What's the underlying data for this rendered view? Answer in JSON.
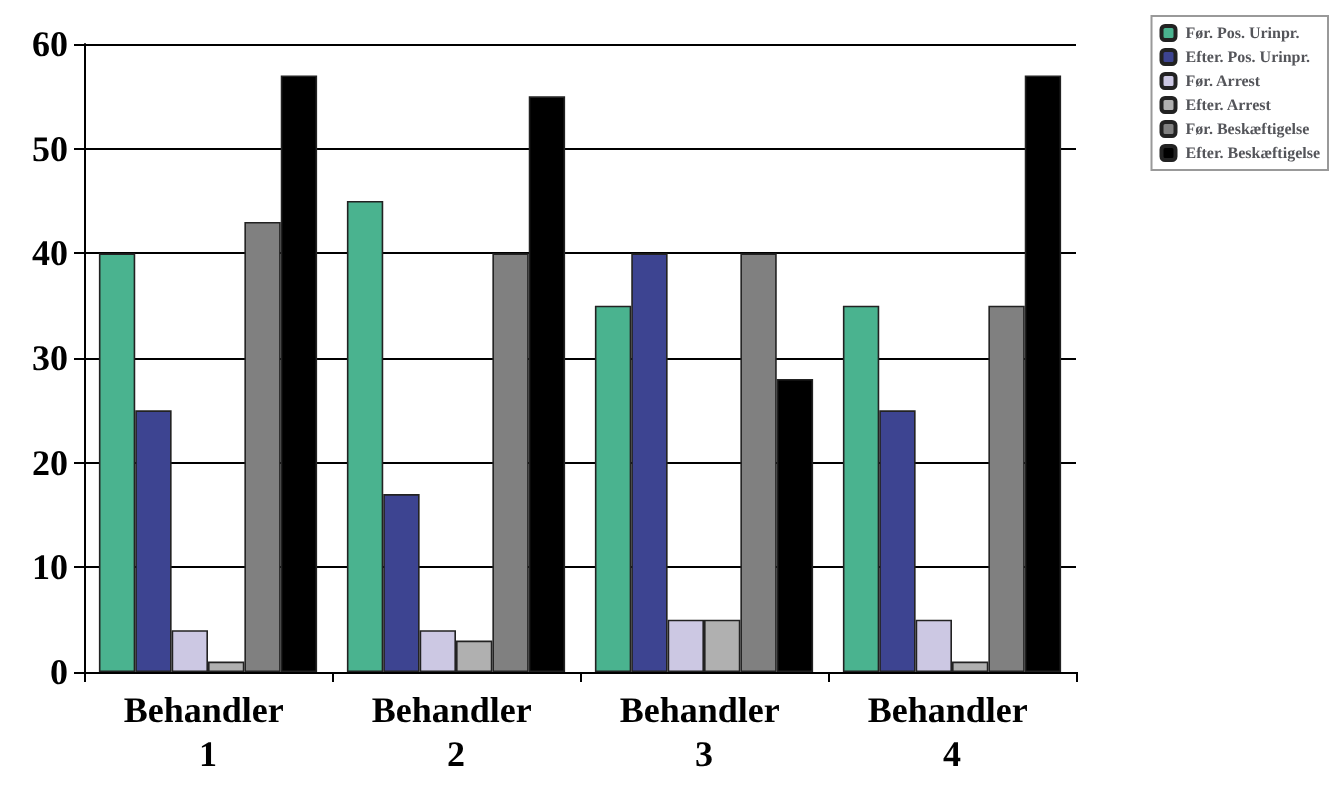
{
  "chart_data": {
    "type": "bar",
    "categories": [
      "Behandler 1",
      "Behandler 2",
      "Behandler 3",
      "Behandler 4"
    ],
    "series": [
      {
        "name": "Før. Pos. Urinpr.",
        "color": "#4ab38f",
        "values": [
          40,
          45,
          35,
          35
        ]
      },
      {
        "name": "Efter. Pos. Urinpr.",
        "color": "#3d4491",
        "values": [
          25,
          17,
          40,
          25
        ]
      },
      {
        "name": "Før. Arrest",
        "color": "#ccc8e3",
        "values": [
          4,
          4,
          5,
          5
        ]
      },
      {
        "name": "Efter. Arrest",
        "color": "#b0b0b0",
        "values": [
          1,
          3,
          5,
          1
        ]
      },
      {
        "name": "Før. Beskæftigelse",
        "color": "#808080",
        "values": [
          43,
          40,
          40,
          35
        ]
      },
      {
        "name": "Efter. Beskæftigelse",
        "color": "#000000",
        "values": [
          57,
          55,
          28,
          57
        ]
      }
    ],
    "ylim": [
      0,
      60
    ],
    "yticks": [
      0,
      10,
      20,
      30,
      40,
      50,
      60
    ],
    "grid": "y",
    "legend": "top right"
  }
}
